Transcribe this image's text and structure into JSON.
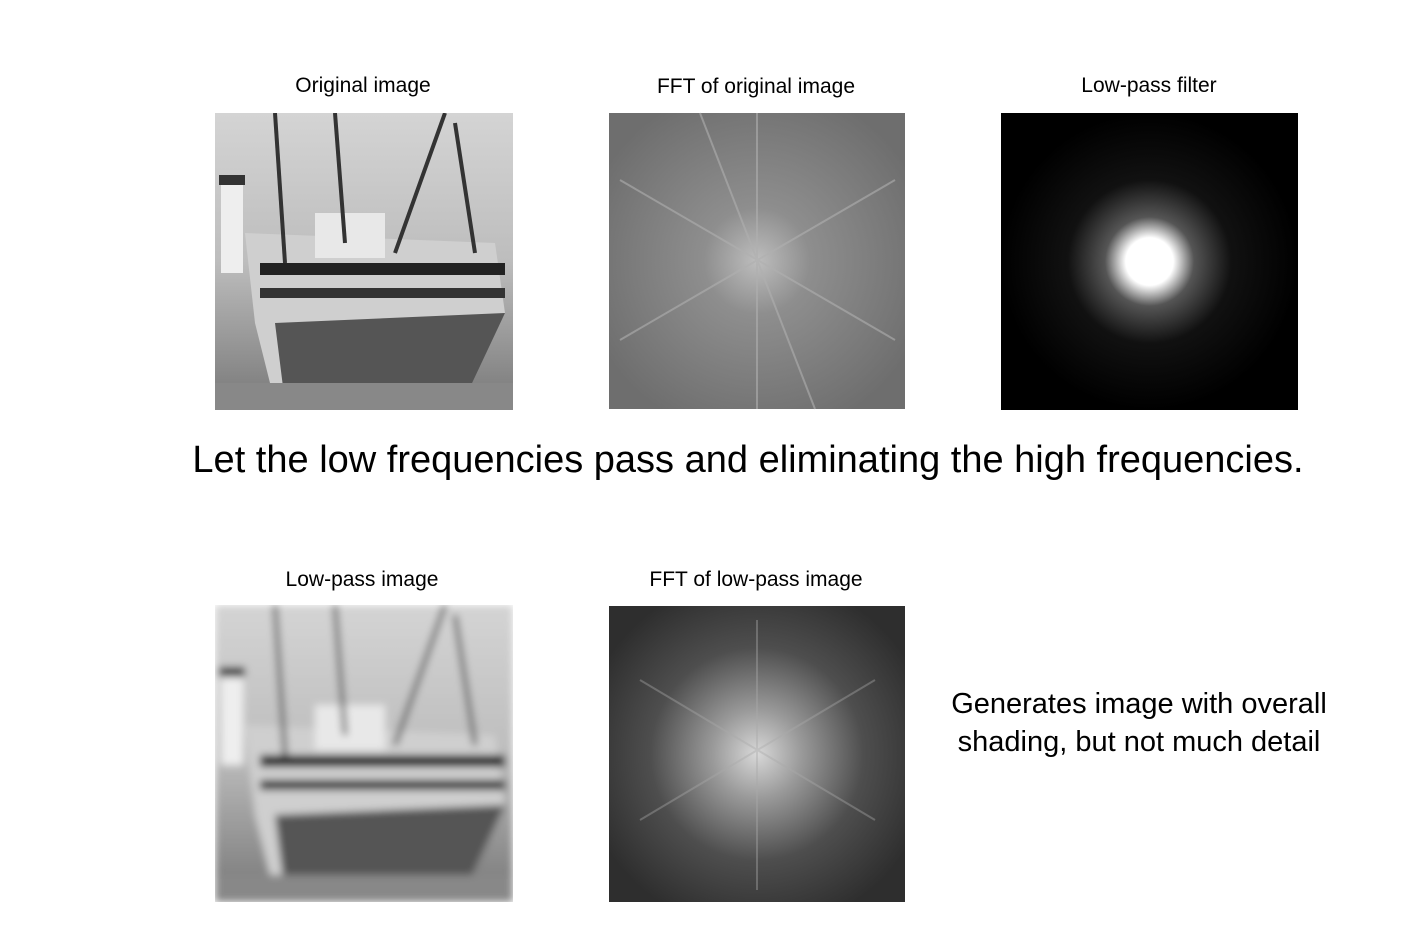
{
  "panels": [
    {
      "title": "Original image"
    },
    {
      "title": "FFT of original image"
    },
    {
      "title": "Low-pass filter"
    },
    {
      "title": "Low-pass image"
    },
    {
      "title": "FFT of low-pass image"
    }
  ],
  "statement": "Let the low frequencies pass and eliminating the high frequencies.",
  "caption": {
    "lines": [
      "Generates image with overall",
      "shading, but not much detail"
    ]
  }
}
